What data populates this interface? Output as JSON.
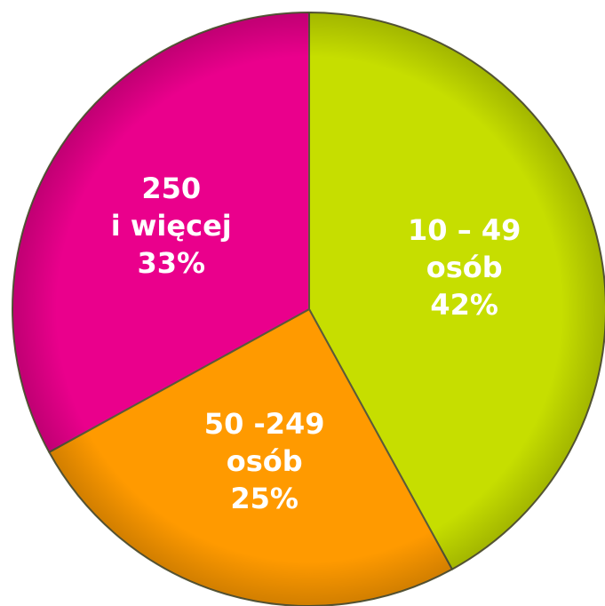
{
  "chart_data": {
    "type": "pie",
    "categories": [
      [
        "10 – 49",
        "osób"
      ],
      [
        "50 -249",
        "osób"
      ],
      [
        "250",
        "i więcej"
      ]
    ],
    "values": [
      42,
      25,
      33
    ],
    "value_labels": [
      "42%",
      "25%",
      "33%"
    ],
    "colors": [
      "#c6de00",
      "#ff9a00",
      "#ea008c"
    ]
  }
}
